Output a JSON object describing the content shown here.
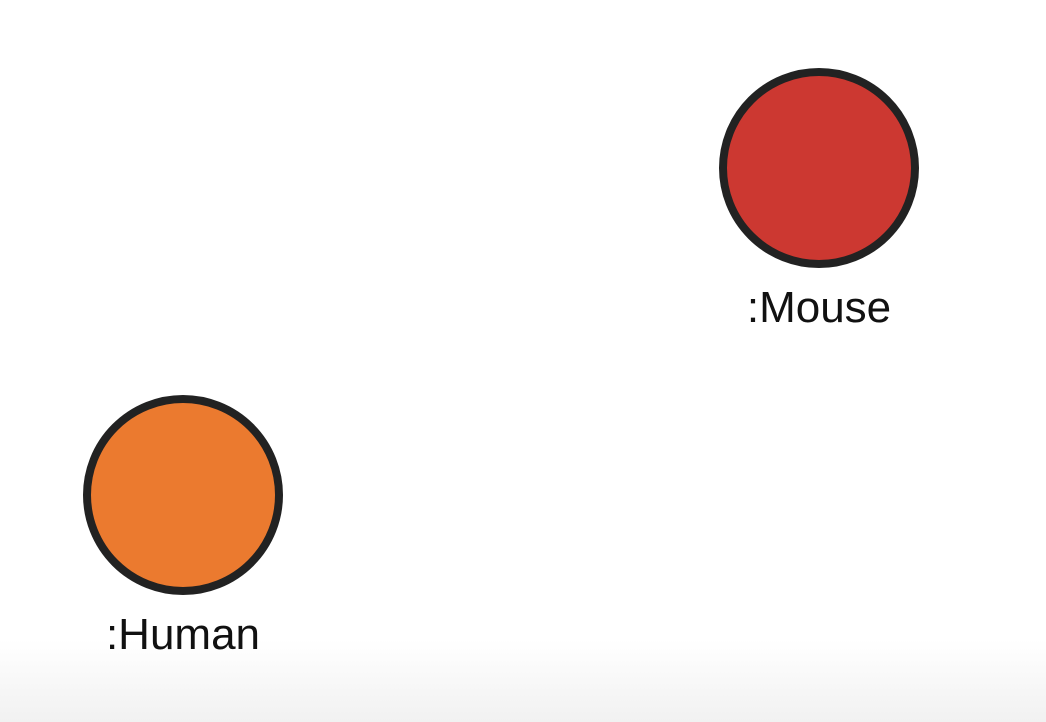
{
  "nodes": {
    "mouse": {
      "label": ":Mouse",
      "fill": "#cc3831",
      "stroke": "#222222"
    },
    "human": {
      "label": ":Human",
      "fill": "#eb7a2f",
      "stroke": "#222222"
    }
  }
}
